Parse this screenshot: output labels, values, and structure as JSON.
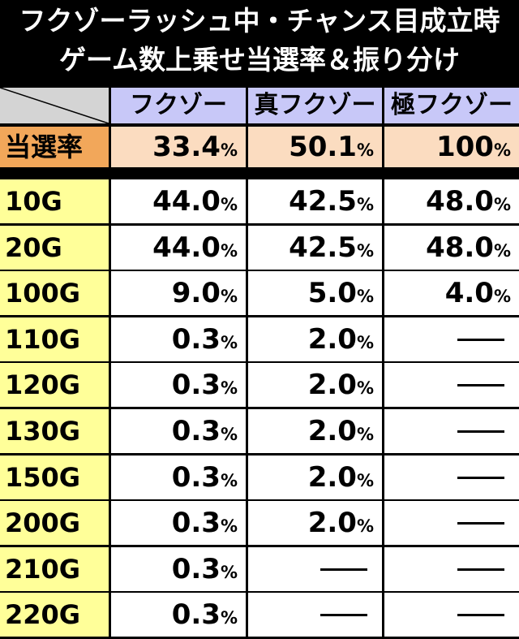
{
  "title": {
    "line1": "フクゾーラッシュ中・チャンス目成立時",
    "line2": "ゲーム数上乗せ当選率＆振り分け"
  },
  "columns": [
    "フクゾー",
    "真フクゾー",
    "極フクゾー"
  ],
  "win_rate": {
    "label": "当選率",
    "values": [
      "33.4",
      "50.1",
      "100"
    ],
    "unit": "%"
  },
  "rows": [
    {
      "label": "10G",
      "values": [
        "44.0",
        "42.5",
        "48.0"
      ]
    },
    {
      "label": "20G",
      "values": [
        "44.0",
        "42.5",
        "48.0"
      ]
    },
    {
      "label": "100G",
      "values": [
        "9.0",
        "5.0",
        "4.0"
      ]
    },
    {
      "label": "110G",
      "values": [
        "0.3",
        "2.0",
        null
      ]
    },
    {
      "label": "120G",
      "values": [
        "0.3",
        "2.0",
        null
      ]
    },
    {
      "label": "130G",
      "values": [
        "0.3",
        "2.0",
        null
      ]
    },
    {
      "label": "150G",
      "values": [
        "0.3",
        "2.0",
        null
      ]
    },
    {
      "label": "200G",
      "values": [
        "0.3",
        "2.0",
        null
      ]
    },
    {
      "label": "210G",
      "values": [
        "0.3",
        null,
        null
      ]
    },
    {
      "label": "220G",
      "values": [
        "0.3",
        null,
        null
      ]
    }
  ]
}
